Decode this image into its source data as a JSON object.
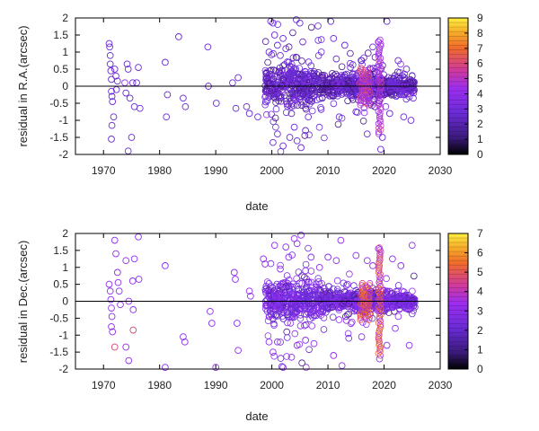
{
  "chart_data": [
    {
      "type": "scatter",
      "xlabel": "date",
      "ylabel": "residual in R.A.(arcsec)",
      "xlim": [
        1965,
        2030
      ],
      "ylim": [
        -2,
        2
      ],
      "xticks": [
        1970,
        1980,
        1990,
        2000,
        2010,
        2020,
        2030
      ],
      "yticks": [
        -2,
        -1.5,
        -1,
        -0.5,
        0,
        0.5,
        1,
        1.5,
        2
      ],
      "colorbar": {
        "range": [
          0,
          9
        ],
        "ticks": [
          0,
          1,
          2,
          3,
          4,
          5,
          6,
          7,
          8,
          9
        ]
      },
      "zero_line": true,
      "grid": false,
      "points": [
        [
          1971.0,
          1.25,
          2
        ],
        [
          1971.1,
          1.15,
          2
        ],
        [
          1971.2,
          0.9,
          2
        ],
        [
          1971.2,
          0.65,
          2
        ],
        [
          1971.3,
          0.45,
          2
        ],
        [
          1971.4,
          0.2,
          2
        ],
        [
          1971.4,
          -0.15,
          2
        ],
        [
          1971.5,
          -0.3,
          2
        ],
        [
          1971.6,
          -0.45,
          2
        ],
        [
          1971.8,
          -0.9,
          2
        ],
        [
          1971.5,
          -1.15,
          2
        ],
        [
          1971.4,
          -1.55,
          2
        ],
        [
          1972.0,
          0.5,
          2
        ],
        [
          1972.2,
          0.3,
          2
        ],
        [
          1972.3,
          -0.1,
          2
        ],
        [
          1972.5,
          0.15,
          2
        ],
        [
          1973.8,
          0.1,
          3
        ],
        [
          1974.0,
          -0.2,
          2
        ],
        [
          1974.2,
          0.65,
          2
        ],
        [
          1974.4,
          0.5,
          2
        ],
        [
          1974.7,
          -0.35,
          2
        ],
        [
          1975.0,
          -1.5,
          2
        ],
        [
          1975.2,
          0.1,
          2
        ],
        [
          1975.5,
          -0.6,
          2
        ],
        [
          1975.9,
          0.1,
          2
        ],
        [
          1976.2,
          0.55,
          2
        ],
        [
          1976.5,
          -0.65,
          2
        ],
        [
          1974.4,
          -1.9,
          2
        ],
        [
          1981.0,
          0.7,
          2
        ],
        [
          1981.2,
          -0.9,
          2
        ],
        [
          1981.4,
          -0.25,
          2
        ],
        [
          1983.4,
          1.45,
          2
        ],
        [
          1984.2,
          -0.35,
          2
        ],
        [
          1984.6,
          -0.6,
          2
        ],
        [
          1988.6,
          1.15,
          2
        ],
        [
          1988.7,
          0.0,
          2
        ],
        [
          1990.1,
          -0.5,
          2
        ],
        [
          1993.0,
          0.1,
          2
        ],
        [
          1993.6,
          -0.65,
          2
        ],
        [
          1994.0,
          0.25,
          2
        ],
        [
          1995.5,
          -0.6,
          2
        ],
        [
          1996.0,
          -0.8,
          2
        ],
        [
          1997.5,
          -0.9,
          2
        ],
        [
          1999.5,
          1.0,
          2
        ],
        [
          1999.8,
          1.9,
          2
        ],
        [
          2000.2,
          1.85,
          2
        ],
        [
          2000.5,
          1.5,
          2
        ],
        [
          2001.0,
          1.2,
          2
        ],
        [
          2001.5,
          0.9,
          2
        ],
        [
          2002.0,
          1.4,
          2
        ],
        [
          2002.5,
          1.1,
          2
        ],
        [
          2003.0,
          0.7,
          2
        ],
        [
          2003.5,
          -0.8,
          2
        ],
        [
          2004.0,
          -1.2,
          2
        ],
        [
          2004.5,
          -1.6,
          2
        ],
        [
          2005.0,
          1.85,
          2
        ],
        [
          2005.5,
          1.3,
          2
        ],
        [
          2006.0,
          -1.3,
          2
        ],
        [
          2006.5,
          -0.9,
          2
        ],
        [
          2007.0,
          0.6,
          2
        ],
        [
          2000.2,
          -1.65,
          2
        ],
        [
          2001.0,
          -1.4,
          2
        ],
        [
          2002.0,
          -1.75,
          2
        ],
        [
          2003.2,
          -1.5,
          2
        ],
        [
          2005.2,
          -1.8,
          2
        ],
        [
          2009.0,
          -0.35,
          2
        ],
        [
          2010.5,
          1.9,
          2
        ],
        [
          2011.0,
          1.4,
          2
        ],
        [
          2011.5,
          0.8,
          2
        ],
        [
          2012.0,
          -0.9,
          2
        ],
        [
          2013.0,
          1.2,
          2
        ],
        [
          2014.0,
          0.55,
          2
        ],
        [
          2015.0,
          -0.75,
          2
        ],
        [
          2016.0,
          0.75,
          2
        ],
        [
          2017.0,
          -1.4,
          2
        ],
        [
          2018.0,
          1.15,
          2
        ],
        [
          2019.0,
          1.3,
          2
        ],
        [
          2019.4,
          -1.85,
          2
        ],
        [
          2019.7,
          -1.5,
          2
        ],
        [
          2020.5,
          1.9,
          2
        ],
        [
          2021.0,
          -0.8,
          2
        ],
        [
          2022.5,
          0.75,
          2
        ],
        [
          2023.5,
          -0.9,
          2
        ],
        [
          2024.0,
          0.5,
          2
        ],
        [
          2024.8,
          -1.0,
          2
        ],
        [
          2025.0,
          0.3,
          2
        ],
        [
          2025.2,
          -0.35,
          2
        ],
        [
          2016.2,
          0.1,
          4
        ],
        [
          2016.5,
          -0.1,
          4
        ],
        [
          2017.2,
          0.05,
          5
        ],
        [
          2017.5,
          -0.05,
          3
        ],
        [
          2015.6,
          0.08,
          4
        ],
        [
          2018.6,
          0.1,
          3
        ],
        [
          2011.3,
          0.05,
          3
        ]
      ],
      "dense_segments": [
        [
          1998.8,
          2009.5,
          0.3,
          0.55
        ],
        [
          2009.5,
          2015.2,
          0.15,
          0.4
        ],
        [
          2015.2,
          2019.0,
          0.2,
          0.45
        ],
        [
          2019.0,
          2021.0,
          0.15,
          0.45
        ],
        [
          2021.0,
          2025.5,
          0.12,
          0.4
        ]
      ]
    },
    {
      "type": "scatter",
      "xlabel": "date",
      "ylabel": "residual in Dec.(arcsec)",
      "xlim": [
        1965,
        2030
      ],
      "ylim": [
        -2,
        2
      ],
      "xticks": [
        1970,
        1980,
        1990,
        2000,
        2010,
        2020,
        2030
      ],
      "yticks": [
        -2,
        -1.5,
        -1,
        -0.5,
        0,
        0.5,
        1,
        1.5,
        2
      ],
      "colorbar": {
        "range": [
          0,
          7
        ],
        "ticks": [
          0,
          1,
          2,
          3,
          4,
          5,
          6,
          7
        ]
      },
      "zero_line": true,
      "grid": false,
      "points": [
        [
          1971.0,
          0.5,
          2
        ],
        [
          1971.2,
          0.3,
          2
        ],
        [
          1971.3,
          0.05,
          2
        ],
        [
          1971.4,
          -0.2,
          2
        ],
        [
          1971.5,
          -0.45,
          2
        ],
        [
          1971.4,
          -0.75,
          2
        ],
        [
          1971.6,
          -0.9,
          2
        ],
        [
          1972.0,
          1.8,
          2
        ],
        [
          1972.2,
          1.4,
          2
        ],
        [
          1972.5,
          0.85,
          2
        ],
        [
          1972.6,
          0.55,
          2
        ],
        [
          1972.8,
          0.3,
          2
        ],
        [
          1973.0,
          -0.1,
          2
        ],
        [
          1974.0,
          1.2,
          2
        ],
        [
          1974.5,
          0.0,
          2
        ],
        [
          1975.2,
          0.6,
          2
        ],
        [
          1975.3,
          -0.25,
          2
        ],
        [
          1975.5,
          1.25,
          2
        ],
        [
          1976.2,
          1.9,
          2
        ],
        [
          1976.3,
          0.65,
          2
        ],
        [
          1972.0,
          -1.35,
          4
        ],
        [
          1975.3,
          -0.85,
          4
        ],
        [
          1974.0,
          -1.35,
          2
        ],
        [
          1974.5,
          -1.75,
          2
        ],
        [
          1981.0,
          1.05,
          2
        ],
        [
          1981.0,
          -1.95,
          2
        ],
        [
          1984.2,
          -1.05,
          2
        ],
        [
          1984.5,
          -1.2,
          2
        ],
        [
          1989.0,
          -0.3,
          2
        ],
        [
          1989.3,
          -0.65,
          2
        ],
        [
          1990.0,
          -1.95,
          2
        ],
        [
          1993.3,
          0.85,
          2
        ],
        [
          1993.5,
          0.65,
          2
        ],
        [
          1993.8,
          -0.65,
          2
        ],
        [
          1994.0,
          -1.45,
          2
        ],
        [
          1996.0,
          0.3,
          2
        ],
        [
          1996.2,
          0.15,
          2
        ],
        [
          1998.5,
          1.25,
          2
        ],
        [
          1998.8,
          1.1,
          2
        ],
        [
          1999.5,
          -1.2,
          2
        ],
        [
          2000.5,
          1.65,
          2
        ],
        [
          2001.5,
          0.95,
          2
        ],
        [
          2002.5,
          1.6,
          2
        ],
        [
          2003.0,
          1.3,
          2
        ],
        [
          2004.0,
          1.85,
          2
        ],
        [
          2004.5,
          1.7,
          2
        ],
        [
          2005.2,
          1.95,
          2
        ],
        [
          2006.0,
          0.9,
          2
        ],
        [
          2007.0,
          1.3,
          2
        ],
        [
          2008.5,
          1.0,
          2
        ],
        [
          2000.2,
          -1.5,
          2
        ],
        [
          2001.0,
          -1.2,
          2
        ],
        [
          2002.0,
          -1.95,
          2
        ],
        [
          2003.5,
          -1.65,
          2
        ],
        [
          2004.5,
          -1.3,
          2
        ],
        [
          2006.0,
          -1.15,
          2
        ],
        [
          2007.5,
          -1.25,
          2
        ],
        [
          2010.0,
          1.3,
          2
        ],
        [
          2011.5,
          1.2,
          2
        ],
        [
          2012.3,
          1.8,
          2
        ],
        [
          2013.5,
          0.5,
          2
        ],
        [
          2015.0,
          1.35,
          2
        ],
        [
          2016.0,
          -1.05,
          2
        ],
        [
          2017.0,
          1.2,
          2
        ],
        [
          2018.0,
          1.05,
          2
        ],
        [
          2019.0,
          1.55,
          2
        ],
        [
          2019.2,
          -1.7,
          2
        ],
        [
          2020.5,
          -1.3,
          2
        ],
        [
          2021.5,
          1.25,
          2
        ],
        [
          2022.0,
          -0.8,
          2
        ],
        [
          2023.0,
          1.05,
          2
        ],
        [
          2024.5,
          -1.3,
          2
        ],
        [
          2025.0,
          1.65,
          2
        ],
        [
          2011.0,
          -1.6,
          2
        ],
        [
          2012.5,
          -1.9,
          2
        ]
      ],
      "dense_segments": [
        [
          1998.8,
          2009.5,
          0.3,
          0.6
        ],
        [
          2009.5,
          2015.0,
          0.15,
          0.35
        ],
        [
          2015.0,
          2019.0,
          0.15,
          0.4
        ],
        [
          2019.0,
          2021.0,
          0.15,
          0.4
        ],
        [
          2021.0,
          2025.5,
          0.12,
          0.35
        ]
      ]
    }
  ]
}
